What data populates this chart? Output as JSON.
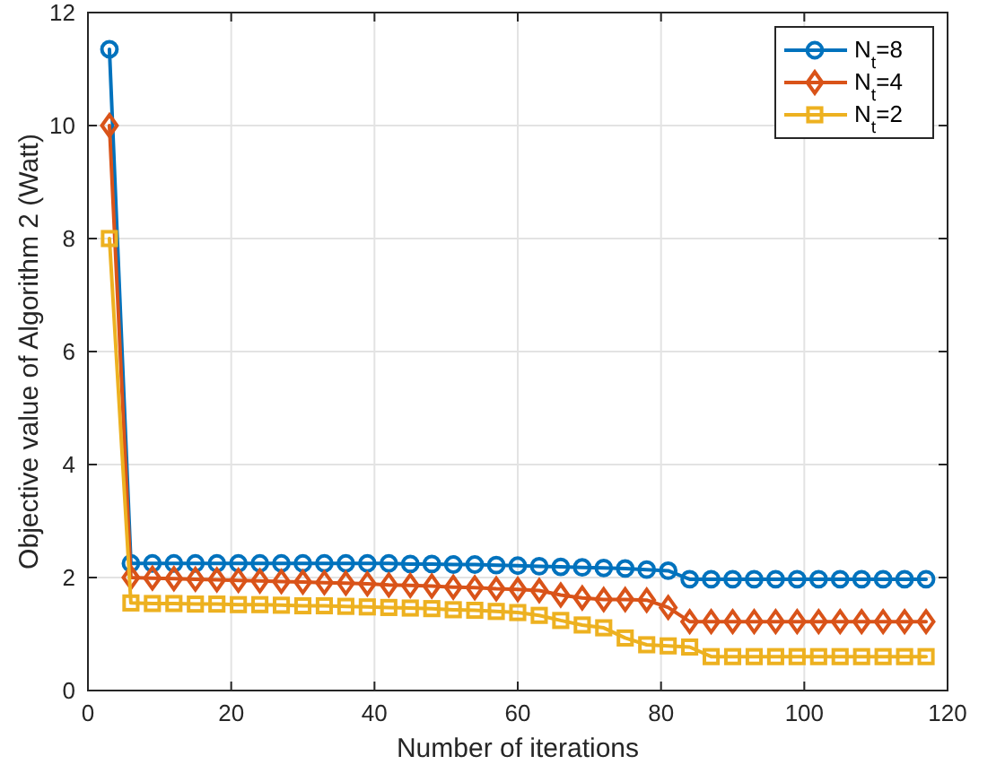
{
  "chart_data": {
    "type": "line",
    "xlabel": "Number of iterations",
    "ylabel": "Objective value of Algorithm 2 (Watt)",
    "x": [
      3,
      6,
      9,
      12,
      15,
      18,
      21,
      24,
      27,
      30,
      33,
      36,
      39,
      42,
      45,
      48,
      51,
      54,
      57,
      60,
      63,
      66,
      69,
      72,
      75,
      78,
      81,
      84,
      87,
      90,
      93,
      96,
      99,
      102,
      105,
      108,
      111,
      114,
      117
    ],
    "xlim": [
      0,
      120
    ],
    "xticks": [
      0,
      20,
      40,
      60,
      80,
      100,
      120
    ],
    "ylim": [
      0,
      12
    ],
    "yticks": [
      0,
      2,
      4,
      6,
      8,
      10,
      12
    ],
    "grid": true,
    "legend": "top right",
    "line_style": "solid",
    "series": [
      {
        "name": "N$_{t}$=8",
        "color": "#0072bd",
        "marker": "circle",
        "values": [
          11.35,
          2.25,
          2.25,
          2.25,
          2.25,
          2.25,
          2.25,
          2.25,
          2.25,
          2.25,
          2.25,
          2.25,
          2.25,
          2.25,
          2.24,
          2.24,
          2.23,
          2.23,
          2.22,
          2.21,
          2.2,
          2.19,
          2.18,
          2.17,
          2.16,
          2.14,
          2.12,
          1.97,
          1.97,
          1.97,
          1.97,
          1.97,
          1.97,
          1.97,
          1.97,
          1.97,
          1.97,
          1.97,
          1.97
        ]
      },
      {
        "name": "N$_{t}$=4",
        "color": "#d95319",
        "marker": "diamond",
        "values": [
          10.0,
          2.0,
          1.99,
          1.98,
          1.97,
          1.96,
          1.95,
          1.94,
          1.93,
          1.92,
          1.91,
          1.9,
          1.89,
          1.87,
          1.86,
          1.85,
          1.83,
          1.82,
          1.8,
          1.79,
          1.77,
          1.69,
          1.64,
          1.61,
          1.61,
          1.6,
          1.47,
          1.22,
          1.22,
          1.22,
          1.22,
          1.22,
          1.22,
          1.22,
          1.22,
          1.22,
          1.22,
          1.22,
          1.22
        ]
      },
      {
        "name": "N$_{t}$=2",
        "color": "#edb120",
        "marker": "square",
        "values": [
          8.0,
          1.55,
          1.54,
          1.54,
          1.53,
          1.53,
          1.52,
          1.52,
          1.51,
          1.5,
          1.5,
          1.49,
          1.48,
          1.47,
          1.46,
          1.45,
          1.43,
          1.42,
          1.4,
          1.38,
          1.33,
          1.24,
          1.16,
          1.11,
          0.93,
          0.81,
          0.79,
          0.77,
          0.6,
          0.6,
          0.6,
          0.6,
          0.6,
          0.6,
          0.6,
          0.6,
          0.6,
          0.6,
          0.6
        ]
      }
    ]
  }
}
